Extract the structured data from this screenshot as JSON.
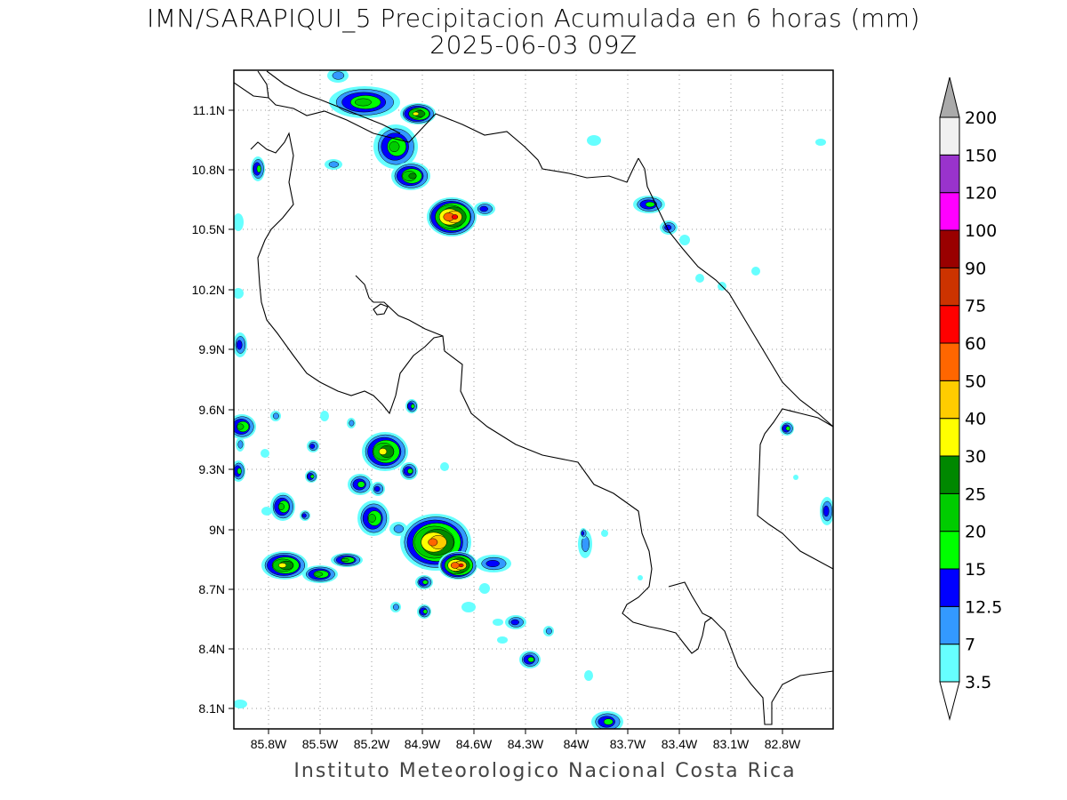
{
  "title": "IMN/SARAPIQUI_5 Precipitacion Acumulada en 6 horas (mm)",
  "subtitle": "2025-06-03 09Z",
  "footer": "Instituto Meteorologico Nacional Costa Rica",
  "map": {
    "lon_range": [
      -86.0,
      -83.0
    ],
    "lat_range": [
      8.0,
      11.3
    ],
    "x_ticks": [
      "85.8W",
      "85.5W",
      "85.2W",
      "84.9W",
      "84.6W",
      "84.3W",
      "84W",
      "83.7W",
      "83.4W",
      "83.1W",
      "82.8W"
    ],
    "y_ticks": [
      "11.1N",
      "10.8N",
      "10.5N",
      "10.2N",
      "9.9N",
      "9.6N",
      "9.3N",
      "9N",
      "8.7N",
      "8.4N",
      "8.1N"
    ],
    "grid": "dotted"
  },
  "colorbar": {
    "labels": [
      "3.5",
      "7",
      "12.5",
      "15",
      "20",
      "25",
      "30",
      "40",
      "50",
      "60",
      "75",
      "90",
      "100",
      "120",
      "150",
      "200"
    ],
    "colors": [
      "#66ffff",
      "#3399ff",
      "#0000ff",
      "#00ff00",
      "#00cc00",
      "#008800",
      "#ffff00",
      "#ffcc00",
      "#ff6600",
      "#ff0000",
      "#cc3300",
      "#990000",
      "#ff00ff",
      "#9933cc",
      "#f0f0f0",
      "#aaaaaa"
    ],
    "under_color": "#ffffff",
    "over_color": "#aaaaaa"
  }
}
